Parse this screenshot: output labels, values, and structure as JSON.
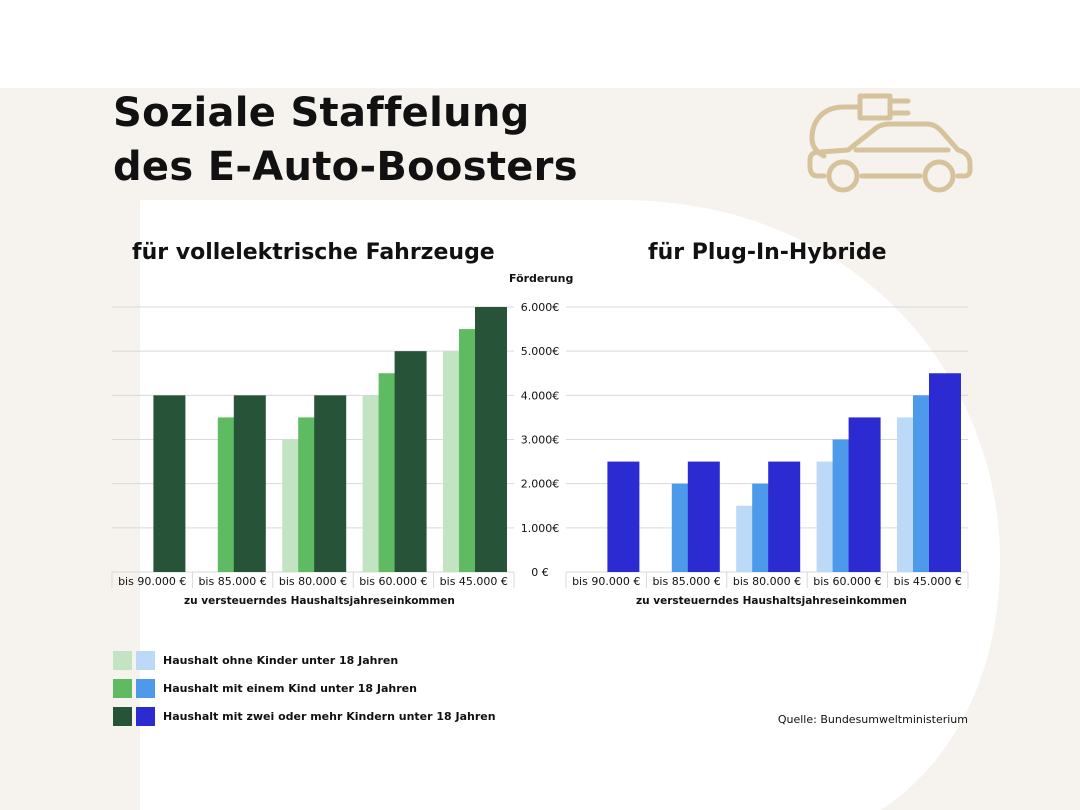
{
  "header": {
    "title_line1": "Soziale Staffelung",
    "title_line2": "des E-Auto-Boosters"
  },
  "icon": "car-plug-icon",
  "colors": {
    "background_shape": "#f6f3ee",
    "icon_stroke": "#d6c39c",
    "grid": "#d9d9d9",
    "green_light": "#c3e4c3",
    "green_mid": "#5fbb62",
    "green_dark": "#275338",
    "blue_light": "#bcdaf7",
    "blue_mid": "#4c9ae9",
    "blue_dark": "#2b2bd1"
  },
  "chart_data": [
    {
      "type": "bar",
      "title": "für vollelektrische Fahrzeuge",
      "ylabel": "Förderung",
      "xlabel": "zu versteuerndes Haushaltsjahreseinkommen",
      "categories": [
        "bis 90.000 €",
        "bis 85.000 €",
        "bis 80.000 €",
        "bis 60.000 €",
        "bis 45.000 €"
      ],
      "series": [
        {
          "name": "Haushalt ohne Kinder unter 18 Jahren",
          "values": [
            null,
            null,
            3000,
            4000,
            5000
          ]
        },
        {
          "name": "Haushalt mit einem Kind unter 18 Jahren",
          "values": [
            null,
            3500,
            3500,
            4500,
            5500
          ]
        },
        {
          "name": "Haushalt mit zwei oder mehr Kindern unter 18 Jahren",
          "values": [
            4000,
            4000,
            4000,
            5000,
            6000
          ]
        }
      ],
      "ylim": [
        0,
        6000
      ],
      "yticks": [
        "0 €",
        "1.000€",
        "2.000€",
        "3.000€",
        "4.000€",
        "5.000€",
        "6.000€"
      ],
      "grid": true
    },
    {
      "type": "bar",
      "title": "für Plug-In-Hybride",
      "ylabel": "Förderung",
      "xlabel": "zu versteuerndes Haushaltsjahreseinkommen",
      "categories": [
        "bis 90.000 €",
        "bis 85.000 €",
        "bis 80.000 €",
        "bis 60.000 €",
        "bis 45.000 €"
      ],
      "series": [
        {
          "name": "Haushalt ohne Kinder unter 18 Jahren",
          "values": [
            null,
            null,
            1500,
            2500,
            3500
          ]
        },
        {
          "name": "Haushalt mit einem Kind unter 18 Jahren",
          "values": [
            null,
            2000,
            2000,
            3000,
            4000
          ]
        },
        {
          "name": "Haushalt mit zwei oder mehr Kindern unter 18 Jahren",
          "values": [
            2500,
            2500,
            2500,
            3500,
            4500
          ]
        }
      ],
      "ylim": [
        0,
        6000
      ],
      "grid": true
    }
  ],
  "legend": [
    "Haushalt ohne Kinder unter 18 Jahren",
    "Haushalt mit einem Kind unter 18 Jahren",
    "Haushalt mit zwei oder mehr Kindern unter 18 Jahren"
  ],
  "source": "Quelle: Bundesumweltministerium"
}
